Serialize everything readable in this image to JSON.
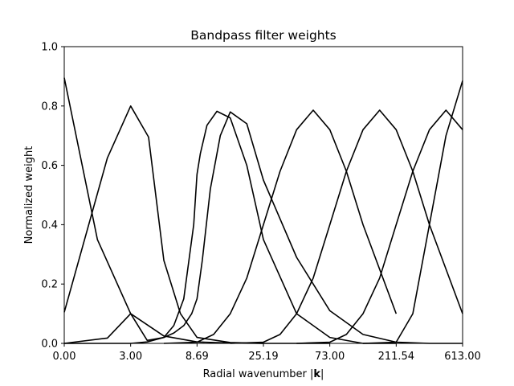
{
  "chart_data": {
    "type": "line",
    "title": "Bandpass filter weights",
    "xlabel_prefix": "Radial wavenumber |",
    "xlabel_bold": "k",
    "xlabel_suffix": "|",
    "ylabel": "Normalized weight",
    "xlim": [
      0,
      6
    ],
    "ylim": [
      0,
      1.0
    ],
    "x_tick_positions": [
      0,
      1,
      2,
      3,
      4,
      5,
      6
    ],
    "x_tick_labels": [
      "0.00",
      "3.00",
      "8.69",
      "25.19",
      "73.00",
      "211.54",
      "613.00"
    ],
    "y_ticks": [
      0.0,
      0.2,
      0.4,
      0.6,
      0.8,
      1.0
    ],
    "y_tick_labels": [
      "0.0",
      "0.2",
      "0.4",
      "0.6",
      "0.8",
      "1.0"
    ],
    "grid": false,
    "line_color": "#000000",
    "series": [
      {
        "x": [
          0,
          0.5,
          1.0,
          1.5,
          2.0,
          2.5,
          3.0
        ],
        "y": [
          0.895,
          0.35,
          0.1,
          0.025,
          0.005,
          0.001,
          0.0
        ]
      },
      {
        "x": [
          0,
          0.65,
          1.0,
          1.27,
          1.5,
          1.75,
          2.0,
          2.5,
          3.0,
          3.5,
          4.0
        ],
        "y": [
          0.105,
          0.625,
          0.8,
          0.695,
          0.28,
          0.1,
          0.02,
          0.003,
          0.0,
          0.0,
          0.0
        ]
      },
      {
        "x": [
          0,
          0.65,
          1.0,
          1.25,
          1.5,
          1.65,
          1.8,
          1.92,
          2.0,
          2.08,
          2.2,
          2.35,
          2.5,
          2.75,
          3.0,
          3.5,
          4.0,
          4.5,
          5.0,
          5.5,
          6.0
        ],
        "y": [
          0.0,
          0.018,
          0.1,
          0.01,
          0.02,
          0.035,
          0.06,
          0.1,
          0.15,
          0.28,
          0.52,
          0.7,
          0.78,
          0.74,
          0.55,
          0.29,
          0.11,
          0.03,
          0.004,
          0.0,
          0.0
        ]
      },
      {
        "x": [
          0,
          0.5,
          1.0,
          1.25,
          1.5,
          1.65,
          1.8,
          1.95,
          2.0,
          2.05,
          2.15,
          2.3,
          2.5,
          2.75,
          3.0,
          3.5,
          4.0,
          4.5,
          5.0
        ],
        "y": [
          0.0,
          0.0,
          0.0,
          0.005,
          0.02,
          0.06,
          0.15,
          0.4,
          0.57,
          0.64,
          0.735,
          0.782,
          0.76,
          0.6,
          0.35,
          0.1,
          0.02,
          0.0,
          0.0
        ]
      },
      {
        "x": [
          1.5,
          2.0,
          2.25,
          2.5,
          2.75,
          3.0,
          3.25,
          3.5,
          3.75,
          4.0,
          4.25,
          4.5,
          5.0
        ],
        "y": [
          0.0,
          0.004,
          0.03,
          0.1,
          0.22,
          0.4,
          0.58,
          0.72,
          0.786,
          0.72,
          0.58,
          0.4,
          0.1
        ]
      },
      {
        "x": [
          2.5,
          3.0,
          3.25,
          3.5,
          3.75,
          4.0,
          4.25,
          4.5,
          4.75,
          5.0,
          5.25,
          5.5,
          6.0
        ],
        "y": [
          0.0,
          0.004,
          0.03,
          0.1,
          0.22,
          0.4,
          0.58,
          0.72,
          0.786,
          0.72,
          0.58,
          0.4,
          0.1
        ]
      },
      {
        "x": [
          3.5,
          4.0,
          4.25,
          4.5,
          4.75,
          5.0,
          5.25,
          5.5,
          5.75,
          6.0
        ],
        "y": [
          0.0,
          0.004,
          0.03,
          0.1,
          0.22,
          0.4,
          0.58,
          0.72,
          0.786,
          0.72
        ]
      },
      {
        "x": [
          4.5,
          5.0,
          5.25,
          5.5,
          5.75,
          6.0
        ],
        "y": [
          0.0,
          0.004,
          0.1,
          0.4,
          0.7,
          0.885
        ]
      }
    ]
  }
}
